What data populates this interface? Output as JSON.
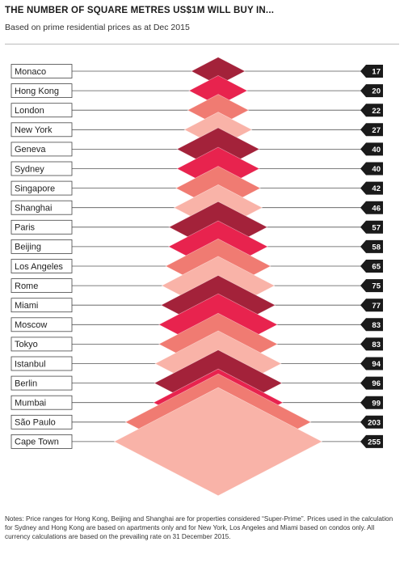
{
  "header": {
    "title": "THE NUMBER OF SQUARE METRES US$1M WILL BUY IN...",
    "subtitle": "Based on prime residential prices as at Dec 2015"
  },
  "chart_data": {
    "type": "bar",
    "orientation": "horizontal",
    "title": "THE NUMBER OF SQUARE METRES US$1M WILL BUY IN...",
    "subtitle": "Based on prime residential prices as at Dec 2015",
    "categories": [
      "Monaco",
      "Hong Kong",
      "London",
      "New York",
      "Geneva",
      "Sydney",
      "Singapore",
      "Shanghai",
      "Paris",
      "Beijing",
      "Los Angeles",
      "Rome",
      "Miami",
      "Moscow",
      "Tokyo",
      "Istanbul",
      "Berlin",
      "Mumbai",
      "São Paulo",
      "Cape Town"
    ],
    "values": [
      17,
      20,
      22,
      27,
      40,
      40,
      42,
      46,
      57,
      58,
      65,
      75,
      77,
      83,
      83,
      94,
      96,
      99,
      203,
      255
    ],
    "value_labels": [
      "17",
      "20",
      "22",
      "27",
      "40",
      "40",
      "42",
      "46",
      "57",
      "58",
      "65",
      "75",
      "77",
      "83",
      "83",
      "94",
      "96",
      "99",
      "203",
      "255"
    ],
    "palette": [
      "#a3223a",
      "#e8234e",
      "#f07b72",
      "#f9b3a8"
    ],
    "label_color": "#222222",
    "value_box_color": "#1a1a1a"
  },
  "footer": {
    "notes": "Notes: Price ranges for Hong Kong, Beijing and Shanghai are for properties considered “Super-Prime”. Prices used in the calculation for Sydney and Hong Kong are based on apartments only and for New York, Los Angeles and Miami based on condos only. All currency calculations are based on the prevailing rate on 31 December 2015."
  }
}
